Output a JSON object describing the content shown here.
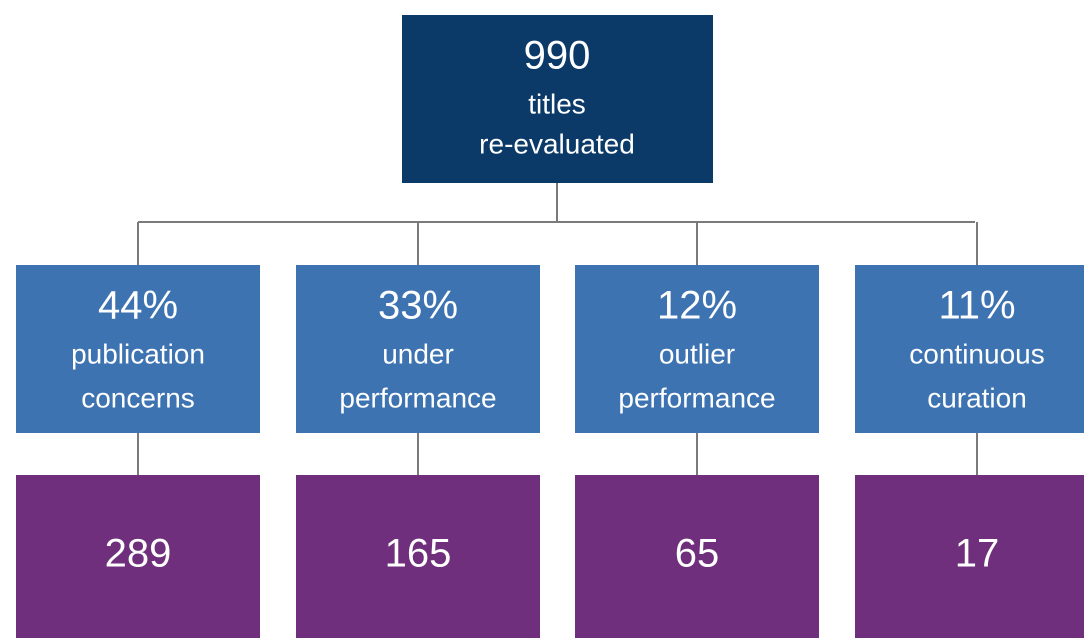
{
  "root": {
    "number": 990,
    "lines": [
      "titles",
      "re-evaluated"
    ]
  },
  "branches": [
    {
      "percent": "44%",
      "lines": [
        "publication",
        "concerns"
      ],
      "count": 289
    },
    {
      "percent": "33%",
      "lines": [
        "under",
        "performance"
      ],
      "count": 165
    },
    {
      "percent": "12%",
      "lines": [
        "outlier",
        "performance"
      ],
      "count": 65
    },
    {
      "percent": "11%",
      "lines": [
        "continuous",
        "curation"
      ],
      "count": 17
    }
  ]
}
